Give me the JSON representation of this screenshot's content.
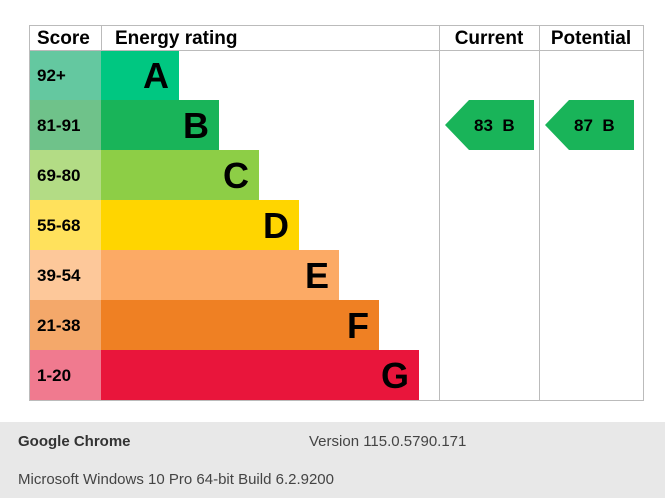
{
  "chart_data": {
    "type": "epc-rating",
    "headers": {
      "score": "Score",
      "rating": "Energy rating",
      "current": "Current",
      "potential": "Potential"
    },
    "bands": [
      {
        "score": "92+",
        "letter": "A",
        "min": 92,
        "max": 100,
        "color": "#00c781",
        "score_bg": "#64c8a0"
      },
      {
        "score": "81-91",
        "letter": "B",
        "min": 81,
        "max": 91,
        "color": "#19b459",
        "score_bg": "#6fc28a"
      },
      {
        "score": "69-80",
        "letter": "C",
        "min": 69,
        "max": 80,
        "color": "#8dce46",
        "score_bg": "#b3dc85"
      },
      {
        "score": "55-68",
        "letter": "D",
        "min": 55,
        "max": 68,
        "color": "#ffd500",
        "score_bg": "#ffe15c"
      },
      {
        "score": "39-54",
        "letter": "E",
        "min": 39,
        "max": 54,
        "color": "#fcaa65",
        "score_bg": "#fdc89a"
      },
      {
        "score": "21-38",
        "letter": "F",
        "min": 21,
        "max": 38,
        "color": "#ef8023",
        "score_bg": "#f4a86a"
      },
      {
        "score": "1-20",
        "letter": "G",
        "min": 1,
        "max": 20,
        "color": "#e9153b",
        "score_bg": "#f07a8f"
      }
    ],
    "current": {
      "value": 83,
      "band": "B",
      "label": "83  B",
      "color": "#19b459"
    },
    "potential": {
      "value": 87,
      "band": "B",
      "label": "87  B",
      "color": "#19b459"
    }
  },
  "footer": {
    "browser": "Google Chrome",
    "version": "Version 115.0.5790.171",
    "os": "Microsoft Windows 10 Pro 64-bit Build 6.2.9200"
  }
}
